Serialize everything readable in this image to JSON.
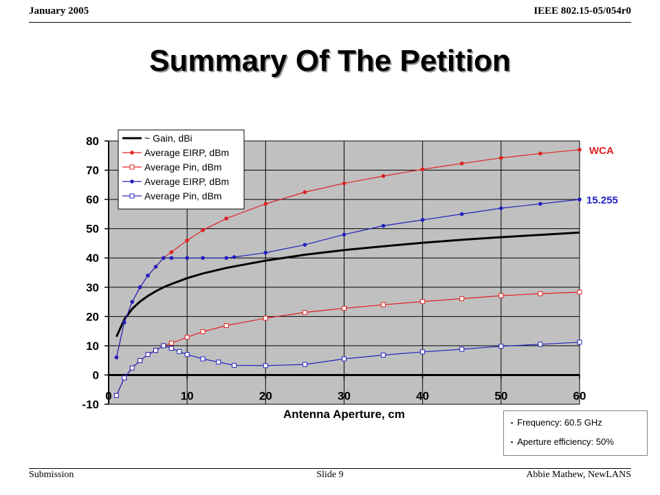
{
  "header": {
    "left": "January 2005",
    "right": "IEEE 802.15-05/054r0"
  },
  "slide_title": "Summary Of The Petition",
  "footer": {
    "left": "Submission",
    "center": "Slide 9",
    "right": "Abbie Mathew, NewLANS"
  },
  "notes": {
    "bullet": "▪",
    "items": [
      "Frequency: 60.5 GHz",
      "Aperture efficiency: 50%"
    ]
  },
  "chart_data": {
    "type": "line",
    "xlabel": "Antenna Aperture, cm",
    "ylabel": "",
    "xlim": [
      0,
      60
    ],
    "ylim": [
      -10,
      80
    ],
    "x_ticks": [
      "0",
      "10",
      "20",
      "30",
      "40",
      "50",
      "60"
    ],
    "y_ticks": [
      "80",
      "70",
      "60",
      "50",
      "40",
      "30",
      "20",
      "10",
      "0",
      "-10"
    ],
    "grid": true,
    "legend_position": "top-left",
    "annotations": [
      {
        "text": "WCA",
        "series": "Average EIRP, dBm (red)",
        "color": "#e02020"
      },
      {
        "text": "15.255",
        "series": "Average EIRP, dBm (blue)",
        "color": "#2020c0"
      }
    ],
    "series": [
      {
        "name": "~ Gain, dBi",
        "color": "#000000",
        "marker": "none",
        "x": [
          1,
          2,
          3,
          4,
          5,
          6,
          7,
          8,
          10,
          12,
          15,
          20,
          25,
          30,
          35,
          40,
          45,
          50,
          55,
          60
        ],
        "values": [
          13.1,
          19.0,
          22.6,
          25.1,
          27.0,
          28.6,
          30.0,
          31.1,
          33.1,
          34.7,
          36.6,
          39.1,
          41.1,
          42.7,
          44.0,
          45.2,
          46.2,
          47.1,
          47.9,
          48.7
        ]
      },
      {
        "name": "Average EIRP, dBm",
        "color": "#e02020",
        "marker": "dot",
        "x": [
          1,
          2,
          3,
          4,
          5,
          6,
          7,
          8,
          10,
          12,
          15,
          20,
          25,
          30,
          35,
          40,
          45,
          50,
          55,
          60
        ],
        "values": [
          6,
          18,
          25,
          30,
          34,
          37,
          40,
          42,
          46,
          49.5,
          53.5,
          58.5,
          62.5,
          65.5,
          68,
          70.3,
          72.3,
          74.2,
          75.7,
          77
        ]
      },
      {
        "name": "Average Pin, dBm",
        "color": "#e02020",
        "marker": "square",
        "x": [
          1,
          2,
          3,
          4,
          5,
          6,
          7,
          8,
          10,
          12,
          15,
          20,
          25,
          30,
          35,
          40,
          45,
          50,
          55,
          60
        ],
        "values": [
          -7,
          -1,
          2.4,
          4.9,
          7,
          8.4,
          10,
          10.9,
          12.9,
          14.8,
          16.9,
          19.4,
          21.4,
          22.8,
          24,
          25.1,
          26.1,
          27.1,
          27.8,
          28.3
        ]
      },
      {
        "name": "Average EIRP, dBm",
        "color": "#2020c0",
        "marker": "dot",
        "x": [
          1,
          2,
          3,
          4,
          5,
          6,
          7,
          8,
          10,
          12,
          15,
          16,
          20,
          25,
          30,
          35,
          40,
          45,
          50,
          55,
          60
        ],
        "values": [
          6,
          18,
          25,
          30,
          34,
          37,
          40,
          40,
          40,
          40,
          40,
          40.3,
          41.8,
          44.5,
          48,
          51,
          53,
          55,
          57,
          58.5,
          60
        ]
      },
      {
        "name": "Average Pin, dBm",
        "color": "#2020c0",
        "marker": "square",
        "x": [
          1,
          2,
          3,
          4,
          5,
          6,
          7,
          8,
          9,
          10,
          12,
          14,
          16,
          20,
          25,
          30,
          35,
          40,
          45,
          50,
          55,
          60
        ],
        "values": [
          -7,
          -1,
          2.4,
          4.9,
          7,
          8.4,
          10,
          9.1,
          8,
          7,
          5.5,
          4.4,
          3.3,
          3.2,
          3.6,
          5.5,
          6.8,
          7.9,
          8.8,
          9.8,
          10.5,
          11.2
        ]
      }
    ]
  }
}
